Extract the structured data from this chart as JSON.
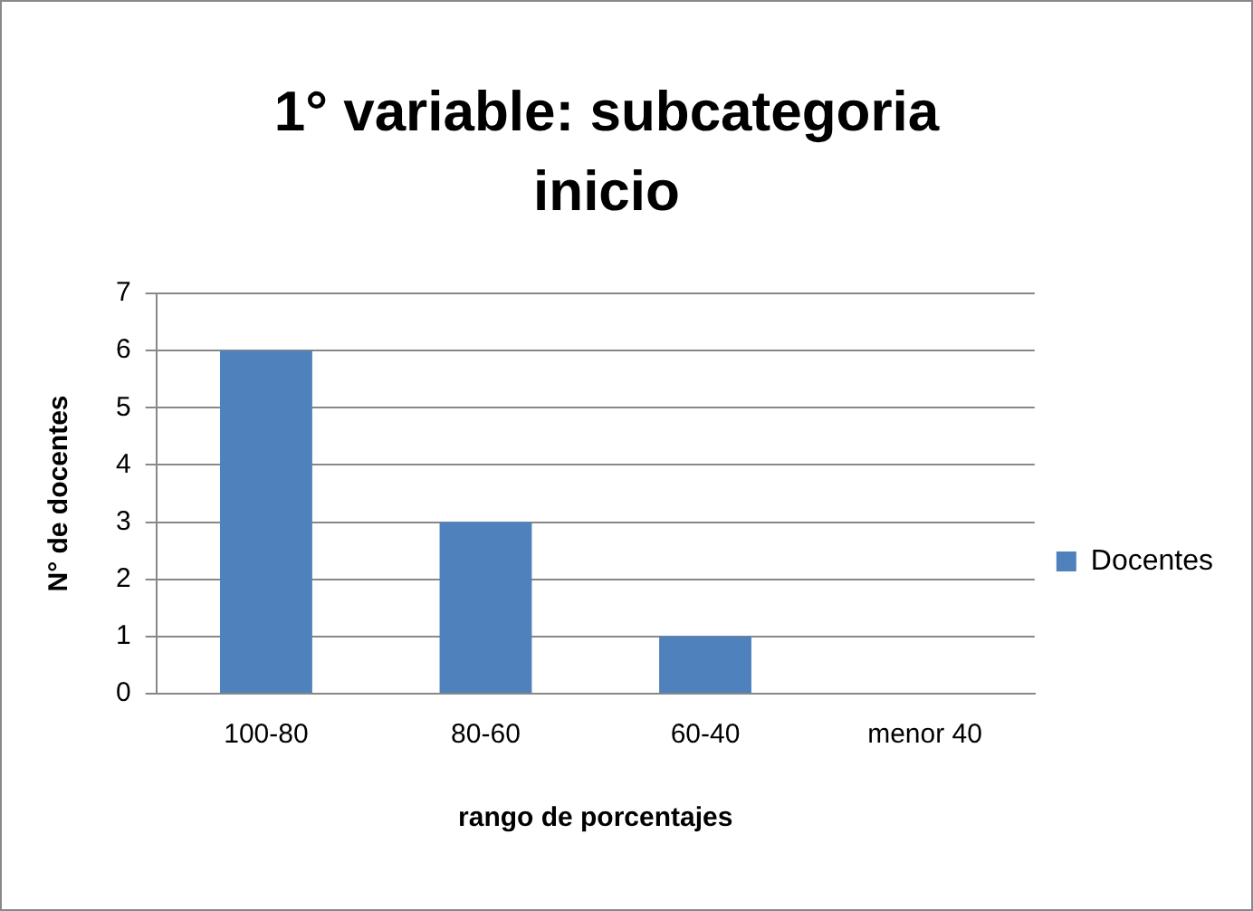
{
  "chart_data": {
    "type": "bar",
    "title": "1° variable: subcategoria inicio",
    "xlabel": "rango de porcentajes",
    "ylabel": "N° de docentes",
    "categories": [
      "100-80",
      "80-60",
      "60-40",
      "menor 40"
    ],
    "series": [
      {
        "name": "Docentes",
        "color": "#4f81bd",
        "values": [
          6,
          3,
          1,
          0
        ]
      }
    ],
    "ylim": [
      0,
      7
    ],
    "yticks": [
      0,
      1,
      2,
      3,
      4,
      5,
      6,
      7
    ],
    "grid": "y",
    "legend": "right"
  }
}
